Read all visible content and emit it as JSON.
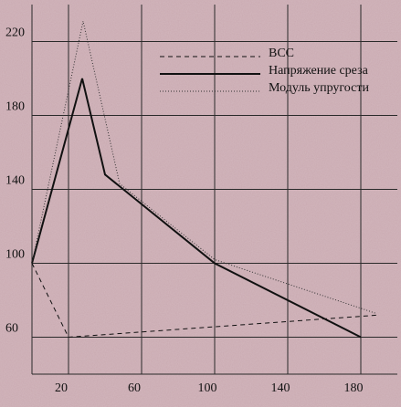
{
  "chart_data": {
    "type": "line",
    "series": [
      {
        "name": "ВСС",
        "color": "#111111",
        "dash": "dashed",
        "x": [
          0,
          20,
          190
        ],
        "values": [
          100,
          60,
          72
        ]
      },
      {
        "name": "Напряжение среза",
        "color": "#111111",
        "dash": "solid",
        "x": [
          0,
          27.5,
          40,
          100,
          180
        ],
        "values": [
          100,
          200,
          148,
          100,
          60
        ]
      },
      {
        "name": "Модуль упругости",
        "color": "#333333",
        "dash": "dotted",
        "x": [
          0,
          28,
          48,
          100,
          188
        ],
        "values": [
          100,
          231,
          143,
          102,
          73
        ]
      }
    ],
    "xlim": [
      0,
      200
    ],
    "xticks": [
      20,
      60,
      100,
      140,
      180
    ],
    "ylim": [
      40,
      240
    ],
    "yticks": [
      60,
      100,
      140,
      180,
      220
    ],
    "grid": true,
    "legend": "upper right"
  }
}
